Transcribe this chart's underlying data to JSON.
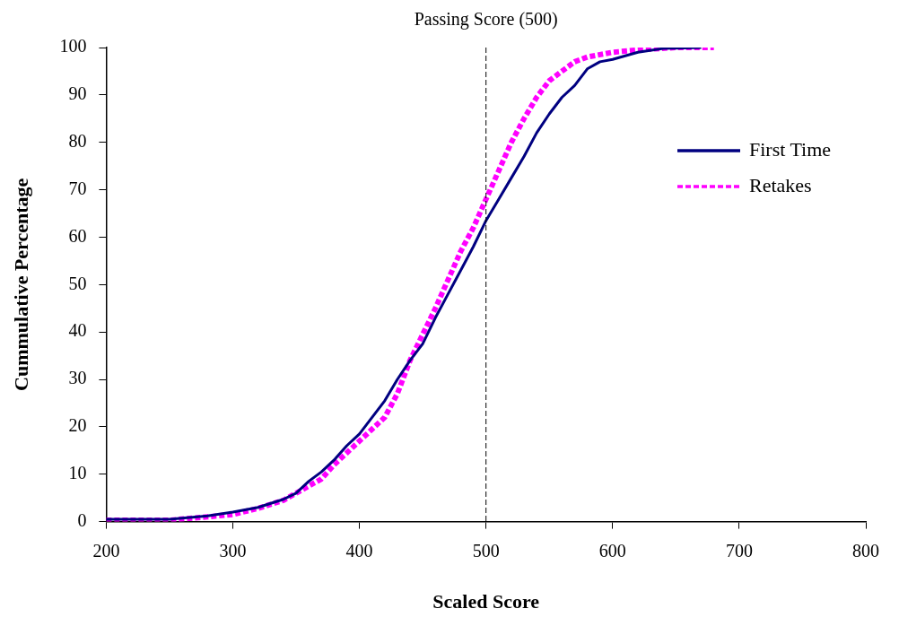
{
  "chart_data": {
    "type": "line",
    "xlabel": "Scaled Score",
    "ylabel": "Cummulative Percentage",
    "xlim": [
      200,
      800
    ],
    "xticks": [
      200,
      300,
      400,
      500,
      600,
      700,
      800
    ],
    "ylim": [
      0,
      100
    ],
    "yticks": [
      0,
      10,
      20,
      30,
      40,
      50,
      60,
      70,
      80,
      90,
      100
    ],
    "grid": false,
    "legend": "right",
    "marker": "none",
    "ref_lines": [
      {
        "axis": "x",
        "value": 500,
        "label": "Passing Score (500)",
        "color": "#000000",
        "line_style": "dashed"
      }
    ],
    "series": [
      {
        "name": "First Time",
        "color": "#000080",
        "line_style": "solid",
        "x": [
          200,
          250,
          280,
          300,
          320,
          340,
          350,
          360,
          370,
          380,
          390,
          400,
          410,
          420,
          430,
          440,
          450,
          460,
          470,
          480,
          490,
          500,
          510,
          520,
          530,
          540,
          550,
          560,
          570,
          580,
          590,
          600,
          620,
          640,
          670
        ],
        "values": [
          0.5,
          0.5,
          1.2,
          2,
          3,
          4.7,
          6,
          8.5,
          10.5,
          13,
          16,
          18.5,
          22,
          25.5,
          30,
          34,
          37.5,
          43,
          48,
          53,
          58,
          63.5,
          68,
          72.5,
          77,
          82,
          86,
          89.5,
          92,
          95.5,
          97,
          97.5,
          99,
          99.8,
          100
        ]
      },
      {
        "name": "Retakes",
        "color": "#ff00ff",
        "line_style": "dashed",
        "x": [
          200,
          250,
          280,
          300,
          320,
          340,
          350,
          360,
          370,
          380,
          390,
          400,
          410,
          420,
          430,
          440,
          450,
          460,
          470,
          480,
          490,
          500,
          510,
          520,
          530,
          540,
          550,
          560,
          570,
          580,
          600,
          620,
          650,
          680
        ],
        "values": [
          0.3,
          0.3,
          1,
          1.5,
          2.8,
          4.5,
          6,
          7.5,
          9,
          12,
          14.5,
          17,
          19.5,
          22,
          27,
          34,
          39.5,
          45,
          51,
          57,
          62,
          68,
          74,
          80,
          85,
          89.5,
          93,
          95,
          97,
          98,
          99,
          99.5,
          100,
          100
        ]
      }
    ]
  }
}
